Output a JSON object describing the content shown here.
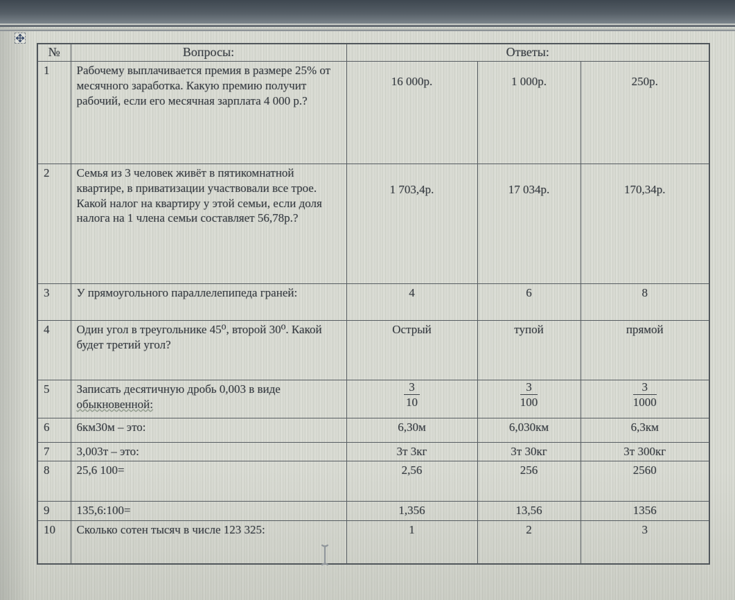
{
  "table": {
    "header": {
      "num": "№",
      "questions": "Вопросы:",
      "answers": "Ответы:"
    },
    "rows": [
      {
        "num": "1",
        "question": "Рабочему выплачивается премия в размере 25% от месячного заработка. Какую премию получит рабочий, если его месячная зарплата 4 000 р.?",
        "answers": [
          "16 000р.",
          "1 000р.",
          "250р."
        ]
      },
      {
        "num": "2",
        "question": "Семья из 3 человек живёт в пятикомнатной квартире, в приватизации участвовали все трое. Какой налог на квартиру у этой семьи, если доля налога на 1 члена семьи составляет 56,78р.?",
        "answers": [
          "1 703,4р.",
          "17 034р.",
          "170,34р."
        ]
      },
      {
        "num": "3",
        "question": "У прямоугольного параллелепипеда граней:",
        "answers": [
          "4",
          "6",
          "8"
        ]
      },
      {
        "num": "4",
        "question": "Один угол в треугольнике 45⁰, второй 30⁰. Какой будет третий угол?",
        "answers": [
          "Острый",
          "тупой",
          "прямой"
        ]
      },
      {
        "num": "5",
        "question": "Записать десятичную дробь 0,003 в виде обыкновенной:",
        "underline_word": "обыкновенной:",
        "answers": [
          {
            "numerator": "3",
            "denominator": "10"
          },
          {
            "numerator": "3",
            "denominator": "100"
          },
          {
            "numerator": "3",
            "denominator": "1000"
          }
        ]
      },
      {
        "num": "6",
        "question": "6км30м – это:",
        "answers": [
          "6,30м",
          "6,030км",
          "6,3км"
        ]
      },
      {
        "num": "7",
        "question": "3,003т – это:",
        "answers": [
          "3т 3кг",
          "3т 30кг",
          "3т 300кг"
        ]
      },
      {
        "num": "8",
        "question": "25,6 100=",
        "answers": [
          "2,56",
          "256",
          "2560"
        ]
      },
      {
        "num": "9",
        "question": "135,6:100=",
        "answers": [
          "1,356",
          "13,56",
          "1356"
        ]
      },
      {
        "num": "10",
        "question": "Сколько сотен тысяч в числе 123 325:",
        "answers": [
          "1",
          "2",
          "3"
        ]
      }
    ]
  },
  "icons": {
    "table_move_handle": "four-way-move-arrow",
    "mouse_pointer": "text-ibeam-cursor"
  }
}
